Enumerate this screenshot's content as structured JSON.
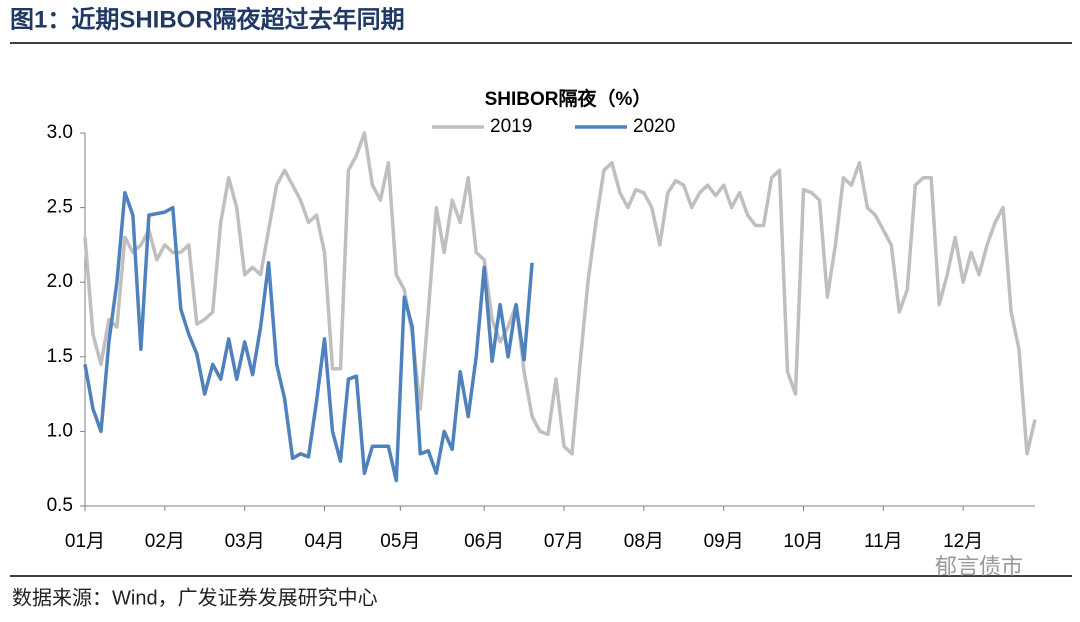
{
  "header": {
    "title": "图1：近期SHIBOR隔夜超过去年同期"
  },
  "chart_data": {
    "type": "line",
    "title": "SHIBOR隔夜（%）",
    "xlim": [
      0,
      119
    ],
    "xticks": [
      {
        "value": 0,
        "label": "01月"
      },
      {
        "value": 10,
        "label": "02月"
      },
      {
        "value": 20,
        "label": "03月"
      },
      {
        "value": 30,
        "label": "04月"
      },
      {
        "value": 39.5,
        "label": "05月"
      },
      {
        "value": 50,
        "label": "06月"
      },
      {
        "value": 60,
        "label": "07月"
      },
      {
        "value": 70,
        "label": "08月"
      },
      {
        "value": 80,
        "label": "09月"
      },
      {
        "value": 90,
        "label": "10月"
      },
      {
        "value": 100,
        "label": "11月"
      },
      {
        "value": 110,
        "label": "12月"
      }
    ],
    "ylim": [
      0.5,
      3.0
    ],
    "yticks": [
      {
        "value": 0.5,
        "label": "0.5"
      },
      {
        "value": 1.0,
        "label": "1.0"
      },
      {
        "value": 1.5,
        "label": "1.5"
      },
      {
        "value": 2.0,
        "label": "2.0"
      },
      {
        "value": 2.5,
        "label": "2.5"
      },
      {
        "value": 3.0,
        "label": "3.0"
      }
    ],
    "grid": false,
    "legend": "top",
    "series": [
      {
        "name": "2019",
        "color": "#bfbfbf",
        "values": [
          2.3,
          1.65,
          1.45,
          1.75,
          1.7,
          2.3,
          2.2,
          2.25,
          2.35,
          2.15,
          2.25,
          2.2,
          2.2,
          2.25,
          1.72,
          1.75,
          1.8,
          2.4,
          2.7,
          2.5,
          2.05,
          2.1,
          2.05,
          2.35,
          2.65,
          2.75,
          2.65,
          2.55,
          2.4,
          2.45,
          2.2,
          1.42,
          1.42,
          2.75,
          2.85,
          3.0,
          2.65,
          2.55,
          2.8,
          2.05,
          1.95,
          1.65,
          1.15,
          1.8,
          2.5,
          2.2,
          2.55,
          2.4,
          2.7,
          2.2,
          2.15,
          1.75,
          1.6,
          1.7,
          1.85,
          1.4,
          1.1,
          1.0,
          0.98,
          1.35,
          0.9,
          0.85,
          1.45,
          2.0,
          2.4,
          2.75,
          2.8,
          2.6,
          2.5,
          2.62,
          2.6,
          2.5,
          2.25,
          2.6,
          2.68,
          2.65,
          2.5,
          2.6,
          2.65,
          2.58,
          2.65,
          2.5,
          2.6,
          2.45,
          2.38,
          2.38,
          2.7,
          2.75,
          1.4,
          1.25,
          2.62,
          2.6,
          2.55,
          1.9,
          2.25,
          2.7,
          2.65,
          2.8,
          2.5,
          2.45,
          2.35,
          2.25,
          1.8,
          1.95,
          2.65,
          2.7,
          2.7,
          1.85,
          2.05,
          2.3,
          2.0,
          2.2,
          2.05,
          2.25,
          2.4,
          2.5,
          1.8,
          1.55,
          0.85,
          1.08
        ]
      },
      {
        "name": "2020",
        "color": "#4f81bd",
        "values": [
          1.45,
          1.15,
          1.0,
          1.6,
          2.0,
          2.6,
          2.45,
          1.55,
          2.45,
          2.46,
          2.47,
          2.5,
          1.82,
          1.65,
          1.52,
          1.25,
          1.45,
          1.35,
          1.62,
          1.35,
          1.6,
          1.38,
          1.7,
          2.13,
          1.45,
          1.22,
          0.82,
          0.85,
          0.83,
          1.2,
          1.62,
          1.0,
          0.8,
          1.35,
          1.37,
          0.72,
          0.9,
          0.9,
          0.9,
          0.67,
          1.9,
          1.7,
          0.85,
          0.87,
          0.72,
          1.0,
          0.88,
          1.4,
          1.1,
          1.5,
          2.1,
          1.47,
          1.85,
          1.5,
          1.85,
          1.48,
          2.13
        ]
      }
    ]
  },
  "source": "数据来源：Wind，广发证券发展研究中心",
  "watermark": "郁言债市"
}
